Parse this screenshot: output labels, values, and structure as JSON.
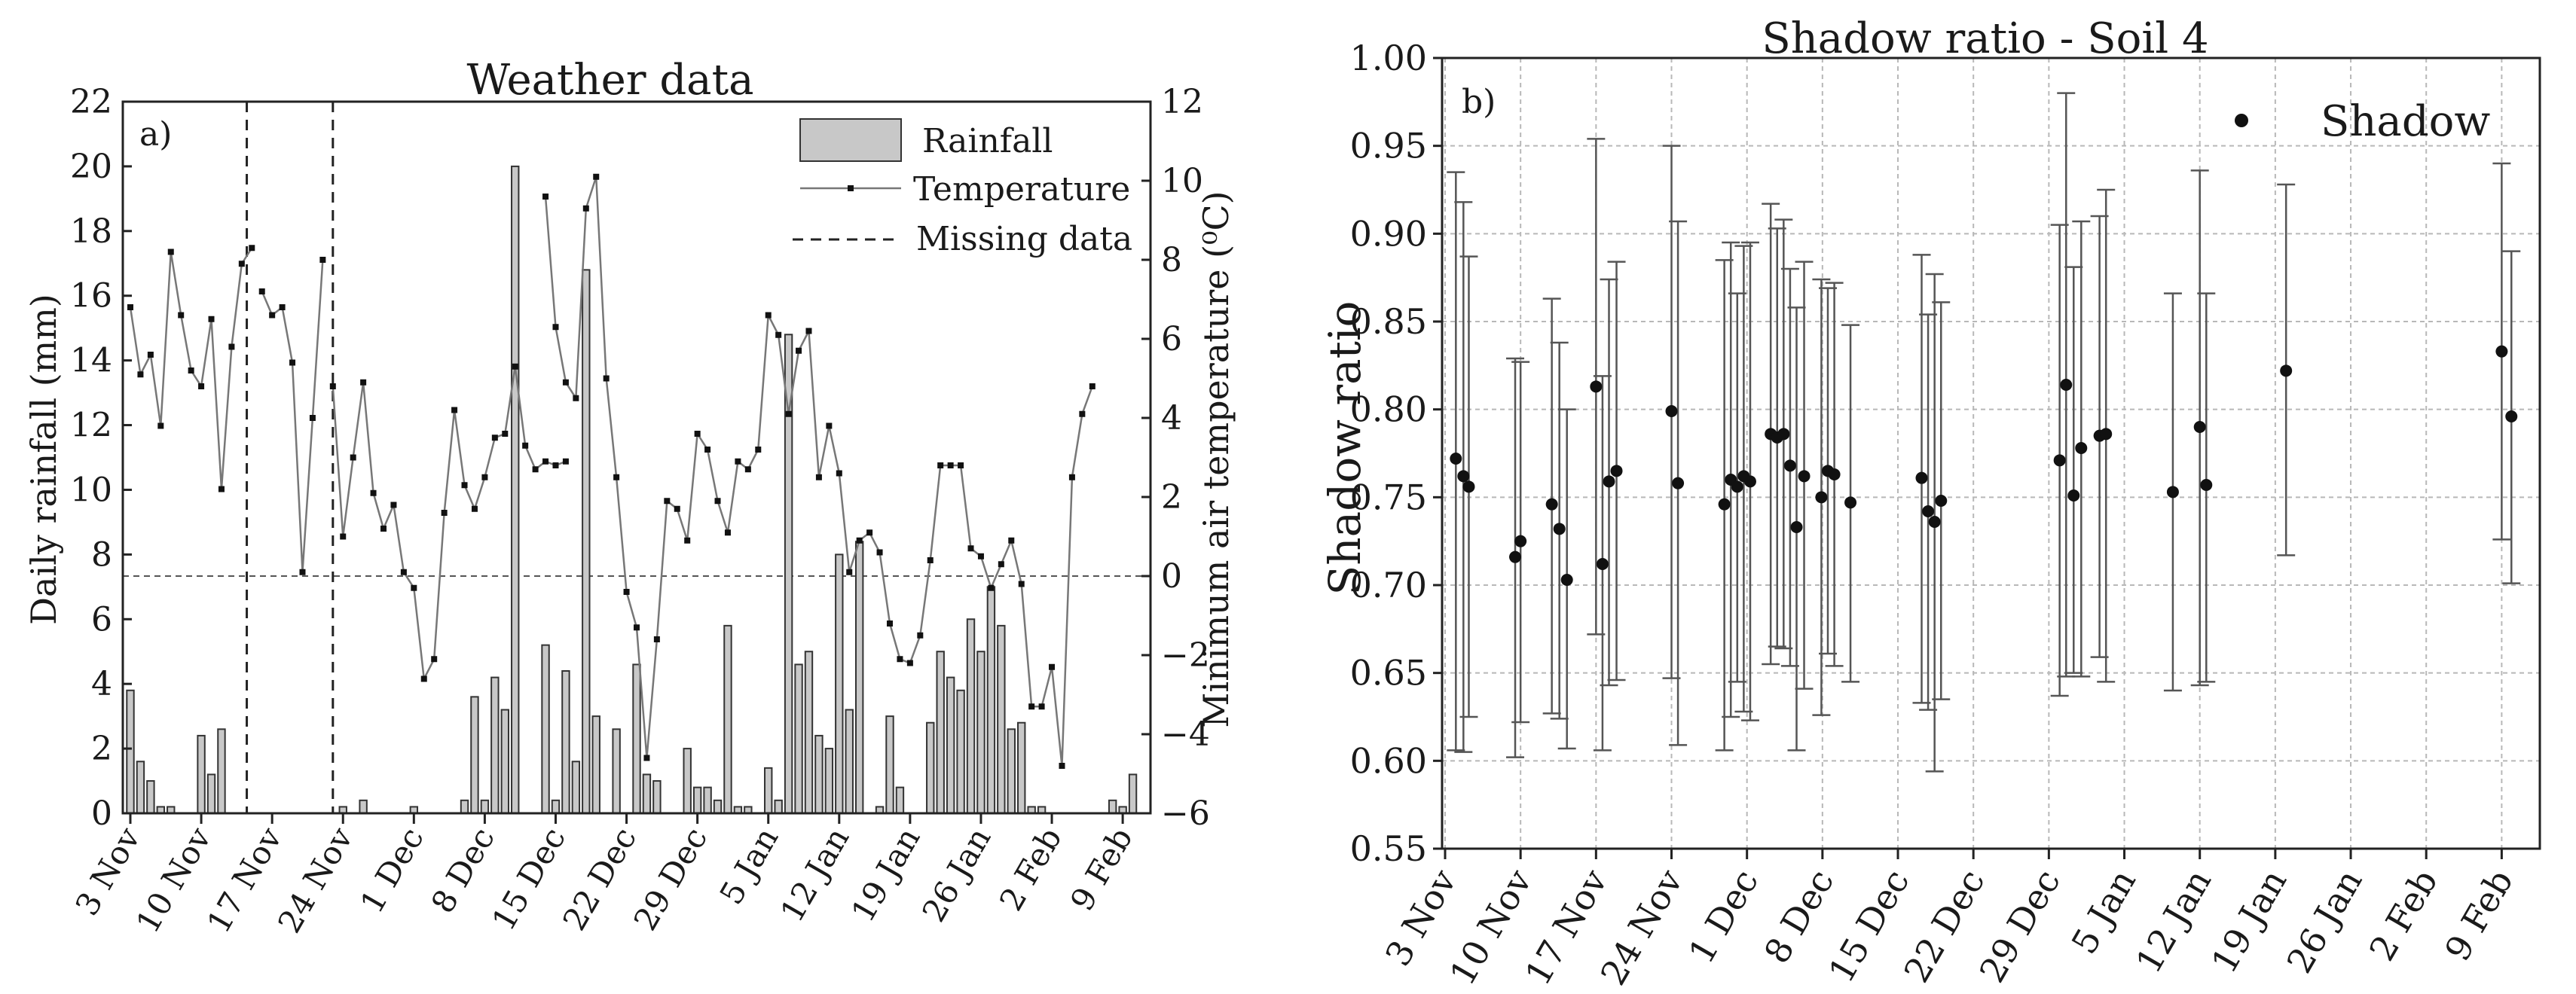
{
  "chart_data": [
    {
      "type": "bar+line",
      "title": "Weather data",
      "panel_label": "a)",
      "ylabel": "Daily rainfall (mm)",
      "y2label": "Minimum air temperature (⁰C)",
      "ylim": [
        0,
        22
      ],
      "y2lim": [
        -6,
        12
      ],
      "y_ticks": [
        "0",
        "2",
        "4",
        "6",
        "8",
        "10",
        "12",
        "14",
        "16",
        "18",
        "20",
        "22"
      ],
      "y2_ticks": [
        "−6",
        "−4",
        "−2",
        "0",
        "2",
        "4",
        "6",
        "8",
        "10",
        "12"
      ],
      "x_start_date": "3 Nov",
      "xlim_days": [
        0,
        100
      ],
      "x_ticks": [
        {
          "day": 0,
          "label": "3 Nov"
        },
        {
          "day": 7,
          "label": "10 Nov"
        },
        {
          "day": 14,
          "label": "17 Nov"
        },
        {
          "day": 21,
          "label": "24 Nov"
        },
        {
          "day": 28,
          "label": "1 Dec"
        },
        {
          "day": 35,
          "label": "8 Dec"
        },
        {
          "day": 42,
          "label": "15 Dec"
        },
        {
          "day": 49,
          "label": "22 Dec"
        },
        {
          "day": 56,
          "label": "29 Dec"
        },
        {
          "day": 63,
          "label": "5 Jan"
        },
        {
          "day": 70,
          "label": "12 Jan"
        },
        {
          "day": 77,
          "label": "19 Jan"
        },
        {
          "day": 84,
          "label": "26 Jan"
        },
        {
          "day": 91,
          "label": "2 Feb"
        },
        {
          "day": 98,
          "label": "9 Feb"
        }
      ],
      "legend": {
        "rainfall": "Rainfall",
        "temperature": "Temperature",
        "missing": "Missing data",
        "position": "top-right"
      },
      "missing_data_days": [
        11.5,
        20
      ],
      "rainfall": {
        "name": "Rainfall",
        "days": [
          0,
          1,
          2,
          3,
          4,
          7,
          8,
          9,
          21,
          23,
          28,
          33,
          34,
          35,
          36,
          37,
          38,
          41,
          42,
          43,
          44,
          45,
          46,
          47,
          48,
          49,
          50,
          51,
          52,
          53,
          55,
          56,
          57,
          58,
          59,
          60,
          61,
          62,
          63,
          64,
          65,
          66,
          67,
          68,
          69,
          70,
          71,
          72,
          73,
          74,
          75,
          76,
          77,
          79,
          80,
          81,
          82,
          83,
          84,
          85,
          86,
          87,
          88,
          89,
          90,
          91,
          92,
          93,
          97,
          98,
          99
        ],
        "values": [
          3.8,
          1.6,
          1.0,
          0.2,
          0.2,
          2.4,
          1.2,
          2.6,
          0.2,
          0.4,
          0.2,
          0.4,
          3.6,
          0.4,
          4.2,
          3.2,
          20.0,
          5.2,
          0.4,
          4.4,
          1.6,
          16.8,
          3.0,
          0.0,
          2.6,
          0.0,
          4.6,
          1.2,
          1.0,
          0.0,
          2.0,
          0.8,
          0.8,
          0.4,
          5.8,
          0.2,
          0.2,
          0.0,
          1.4,
          0.4,
          14.8,
          4.6,
          5.0,
          2.4,
          2.0,
          8.0,
          3.2,
          8.4,
          0.0,
          0.2,
          3.0,
          0.8,
          0.0,
          2.8,
          5.0,
          4.2,
          3.8,
          6.0,
          5.0,
          7.0,
          5.8,
          2.6,
          2.8,
          0.2,
          0.2,
          0.0,
          0.0,
          0.0,
          0.4,
          0.2,
          1.2
        ]
      },
      "temperature": {
        "name": "Temperature",
        "unit": "°C",
        "segments": [
          {
            "start_day": 0,
            "values": [
              6.8,
              5.1,
              5.6,
              3.8,
              8.2,
              6.6,
              5.2,
              4.8,
              6.5,
              2.2,
              5.8,
              7.9,
              8.3
            ]
          },
          {
            "start_day": 13,
            "values": [
              7.2,
              6.6,
              6.8,
              5.4,
              0.1,
              4.0,
              8.0
            ]
          },
          {
            "start_day": 20,
            "values": [
              4.8,
              1.0,
              3.0,
              4.9,
              2.1,
              1.2,
              1.8,
              0.1,
              -0.3,
              -2.6,
              -2.1,
              1.6,
              4.2,
              2.3,
              1.7,
              2.5,
              3.5,
              3.6,
              5.3,
              3.3,
              2.7,
              2.9,
              2.8,
              2.9
            ]
          },
          {
            "start_day": 41,
            "values": [
              9.6,
              6.3,
              4.9,
              4.5,
              9.3,
              10.1,
              5.0,
              2.5,
              -0.4,
              -1.3,
              -4.6,
              -1.6,
              1.9,
              1.7,
              0.9,
              3.6,
              3.2,
              1.9,
              1.1,
              2.9,
              2.7,
              3.2,
              6.6,
              6.1,
              4.1,
              5.7,
              6.2,
              2.5,
              3.8,
              2.6,
              0.1,
              0.9,
              1.1,
              0.6,
              -1.2,
              -2.1,
              -2.2,
              -1.5,
              0.4,
              2.8,
              2.8,
              2.8,
              0.7,
              0.5,
              -0.3,
              0.3,
              0.9,
              -0.2,
              -3.3,
              -3.3,
              -2.3,
              -4.8,
              2.5,
              4.1,
              4.8
            ]
          }
        ]
      }
    },
    {
      "type": "scatter-errorbar",
      "title": "Shadow ratio - Soil 4",
      "panel_label": "b)",
      "ylabel": "Shadow ratio",
      "xlabel": "",
      "ylim": [
        0.55,
        1.0
      ],
      "y_ticks": [
        "0.55",
        "0.60",
        "0.65",
        "0.70",
        "0.75",
        "0.80",
        "0.85",
        "0.90",
        "0.95",
        "1.00"
      ],
      "xlim_days": [
        0,
        100
      ],
      "x_ticks": [
        {
          "day": 0,
          "label": "3 Nov"
        },
        {
          "day": 7,
          "label": "10 Nov"
        },
        {
          "day": 14,
          "label": "17 Nov"
        },
        {
          "day": 21,
          "label": "24 Nov"
        },
        {
          "day": 28,
          "label": "1 Dec"
        },
        {
          "day": 35,
          "label": "8 Dec"
        },
        {
          "day": 42,
          "label": "15 Dec"
        },
        {
          "day": 49,
          "label": "22 Dec"
        },
        {
          "day": 56,
          "label": "29 Dec"
        },
        {
          "day": 63,
          "label": "5 Jan"
        },
        {
          "day": 70,
          "label": "12 Jan"
        },
        {
          "day": 77,
          "label": "19 Jan"
        },
        {
          "day": 84,
          "label": "26 Jan"
        },
        {
          "day": 91,
          "label": "2 Feb"
        },
        {
          "day": 98,
          "label": "9 Feb"
        }
      ],
      "grid": true,
      "legend": {
        "label": "Shadow",
        "position": "top-right"
      },
      "series": [
        {
          "name": "Shadow",
          "points": [
            {
              "x": 1,
              "y": 0.772,
              "lo": 0.606,
              "hi": 0.935
            },
            {
              "x": 1.7,
              "y": 0.762,
              "lo": 0.605,
              "hi": 0.918
            },
            {
              "x": 2.2,
              "y": 0.756,
              "lo": 0.625,
              "hi": 0.887
            },
            {
              "x": 6.5,
              "y": 0.716,
              "lo": 0.602,
              "hi": 0.829
            },
            {
              "x": 7.0,
              "y": 0.725,
              "lo": 0.622,
              "hi": 0.827
            },
            {
              "x": 9.9,
              "y": 0.746,
              "lo": 0.627,
              "hi": 0.863
            },
            {
              "x": 10.6,
              "y": 0.732,
              "lo": 0.624,
              "hi": 0.838
            },
            {
              "x": 11.3,
              "y": 0.703,
              "lo": 0.607,
              "hi": 0.8
            },
            {
              "x": 14.0,
              "y": 0.813,
              "lo": 0.672,
              "hi": 0.954
            },
            {
              "x": 14.6,
              "y": 0.712,
              "lo": 0.606,
              "hi": 0.819
            },
            {
              "x": 15.2,
              "y": 0.759,
              "lo": 0.643,
              "hi": 0.874
            },
            {
              "x": 15.9,
              "y": 0.765,
              "lo": 0.646,
              "hi": 0.884
            },
            {
              "x": 21.0,
              "y": 0.799,
              "lo": 0.647,
              "hi": 0.95
            },
            {
              "x": 21.6,
              "y": 0.758,
              "lo": 0.609,
              "hi": 0.907
            },
            {
              "x": 25.9,
              "y": 0.746,
              "lo": 0.606,
              "hi": 0.885
            },
            {
              "x": 26.5,
              "y": 0.76,
              "lo": 0.625,
              "hi": 0.895
            },
            {
              "x": 27.1,
              "y": 0.756,
              "lo": 0.645,
              "hi": 0.866
            },
            {
              "x": 27.7,
              "y": 0.762,
              "lo": 0.628,
              "hi": 0.893
            },
            {
              "x": 28.3,
              "y": 0.759,
              "lo": 0.623,
              "hi": 0.895
            },
            {
              "x": 30.2,
              "y": 0.786,
              "lo": 0.655,
              "hi": 0.917
            },
            {
              "x": 30.8,
              "y": 0.784,
              "lo": 0.665,
              "hi": 0.903
            },
            {
              "x": 31.4,
              "y": 0.786,
              "lo": 0.664,
              "hi": 0.908
            },
            {
              "x": 32.0,
              "y": 0.768,
              "lo": 0.654,
              "hi": 0.88
            },
            {
              "x": 32.6,
              "y": 0.733,
              "lo": 0.606,
              "hi": 0.858
            },
            {
              "x": 33.3,
              "y": 0.762,
              "lo": 0.641,
              "hi": 0.884
            },
            {
              "x": 34.9,
              "y": 0.75,
              "lo": 0.626,
              "hi": 0.874
            },
            {
              "x": 35.5,
              "y": 0.765,
              "lo": 0.661,
              "hi": 0.869
            },
            {
              "x": 36.1,
              "y": 0.763,
              "lo": 0.654,
              "hi": 0.872
            },
            {
              "x": 37.6,
              "y": 0.747,
              "lo": 0.645,
              "hi": 0.848
            },
            {
              "x": 44.2,
              "y": 0.761,
              "lo": 0.633,
              "hi": 0.888
            },
            {
              "x": 44.8,
              "y": 0.742,
              "lo": 0.629,
              "hi": 0.854
            },
            {
              "x": 45.4,
              "y": 0.736,
              "lo": 0.594,
              "hi": 0.877
            },
            {
              "x": 46.0,
              "y": 0.748,
              "lo": 0.635,
              "hi": 0.861
            },
            {
              "x": 57.0,
              "y": 0.771,
              "lo": 0.637,
              "hi": 0.905
            },
            {
              "x": 57.6,
              "y": 0.814,
              "lo": 0.648,
              "hi": 0.98
            },
            {
              "x": 58.3,
              "y": 0.751,
              "lo": 0.65,
              "hi": 0.881
            },
            {
              "x": 59.0,
              "y": 0.778,
              "lo": 0.648,
              "hi": 0.907
            },
            {
              "x": 60.7,
              "y": 0.785,
              "lo": 0.659,
              "hi": 0.91
            },
            {
              "x": 61.3,
              "y": 0.786,
              "lo": 0.645,
              "hi": 0.925
            },
            {
              "x": 67.5,
              "y": 0.753,
              "lo": 0.64,
              "hi": 0.866
            },
            {
              "x": 70.0,
              "y": 0.79,
              "lo": 0.643,
              "hi": 0.936
            },
            {
              "x": 70.6,
              "y": 0.757,
              "lo": 0.645,
              "hi": 0.866
            },
            {
              "x": 78.0,
              "y": 0.822,
              "lo": 0.717,
              "hi": 0.928
            },
            {
              "x": 98.0,
              "y": 0.833,
              "lo": 0.726,
              "hi": 0.94
            },
            {
              "x": 98.9,
              "y": 0.796,
              "lo": 0.701,
              "hi": 0.89
            }
          ]
        }
      ]
    }
  ]
}
